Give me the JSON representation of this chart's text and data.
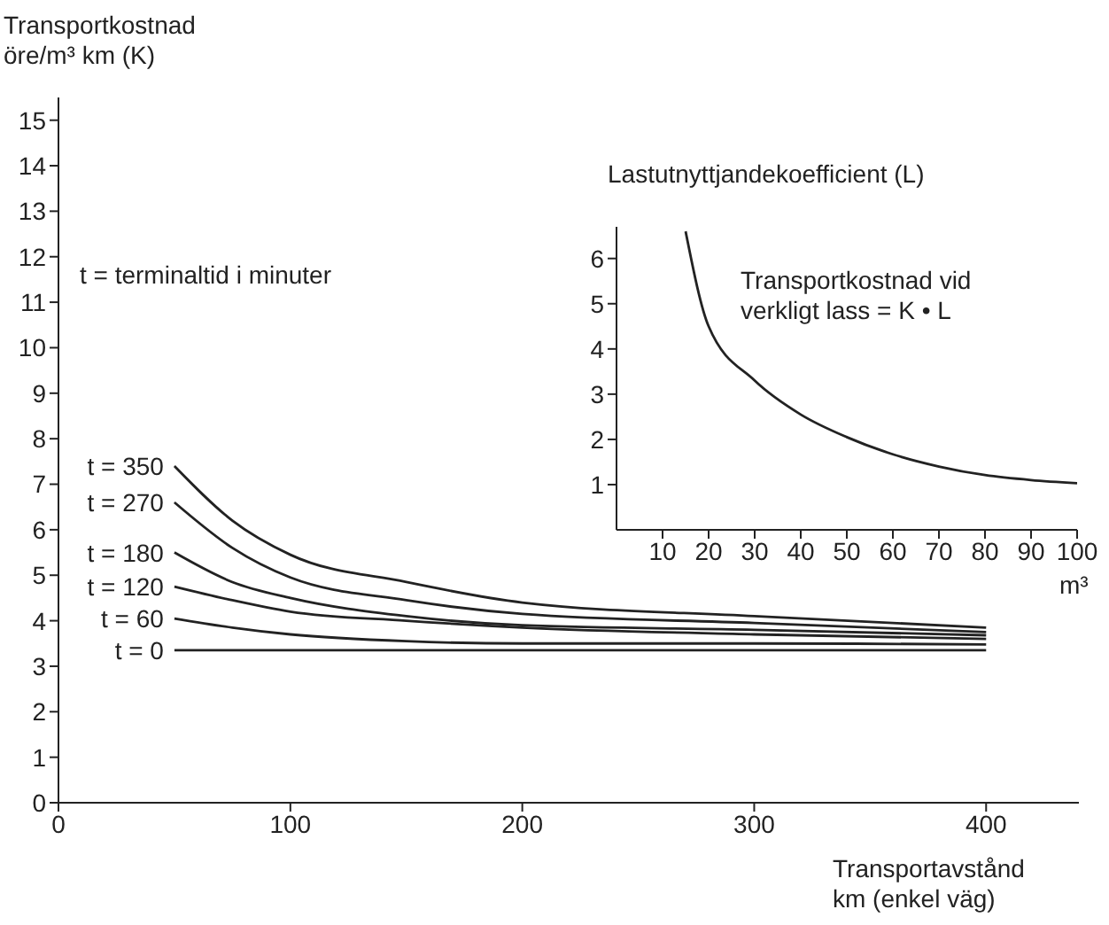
{
  "chart_data": [
    {
      "type": "line",
      "ylabel": "Transportkostnad\nöre/m³ km (K)",
      "xlabel": "Transportavstånd\nkm (enkel väg)",
      "annotations": [
        "t = terminaltid i minuter"
      ],
      "xlim": [
        0,
        440
      ],
      "xticks": [
        0,
        100,
        200,
        300,
        400
      ],
      "ylim": [
        0,
        15.5
      ],
      "yticks": [
        0,
        1,
        2,
        3,
        4,
        5,
        6,
        7,
        8,
        9,
        10,
        11,
        12,
        13,
        14,
        15
      ],
      "grid": false,
      "legend": "left",
      "marker": "none",
      "line_style": "solid",
      "x": [
        50,
        75,
        100,
        150,
        200,
        300,
        400
      ],
      "series": [
        {
          "name": "t = 350",
          "color": "#222222",
          "values": [
            7.4,
            6.2,
            5.45,
            4.85,
            4.4,
            4.1,
            3.85
          ]
        },
        {
          "name": "t = 270",
          "color": "#222222",
          "values": [
            6.6,
            5.6,
            4.95,
            4.45,
            4.15,
            3.95,
            3.75
          ]
        },
        {
          "name": "t = 180",
          "color": "#222222",
          "values": [
            5.5,
            4.85,
            4.5,
            4.1,
            3.9,
            3.8,
            3.68
          ]
        },
        {
          "name": "t = 120",
          "color": "#222222",
          "values": [
            4.75,
            4.45,
            4.2,
            4.0,
            3.85,
            3.7,
            3.6
          ]
        },
        {
          "name": "t = 60",
          "color": "#222222",
          "values": [
            4.05,
            3.85,
            3.7,
            3.55,
            3.5,
            3.5,
            3.48
          ]
        },
        {
          "name": "t = 0",
          "color": "#222222",
          "values": [
            3.35,
            3.35,
            3.35,
            3.35,
            3.35,
            3.35,
            3.35
          ]
        }
      ]
    },
    {
      "type": "line",
      "title": "Lastutnyttjandekoefficient (L)",
      "xlabel": "m³",
      "annotations": [
        "Transportkostnad vid\nverkligt lass = K • L"
      ],
      "xlim": [
        0,
        100
      ],
      "xticks": [
        10,
        20,
        30,
        40,
        50,
        60,
        70,
        80,
        90,
        100
      ],
      "ylim": [
        0,
        6.7
      ],
      "yticks": [
        1,
        2,
        3,
        4,
        5,
        6
      ],
      "grid": false,
      "legend": false,
      "marker": "none",
      "line_style": "solid",
      "x": [
        15,
        20,
        30,
        40,
        50,
        60,
        70,
        80,
        90,
        100
      ],
      "series": [
        {
          "color": "#222222",
          "values": [
            6.6,
            4.5,
            3.3,
            2.55,
            2.05,
            1.67,
            1.4,
            1.21,
            1.1,
            1.03
          ]
        }
      ]
    }
  ]
}
